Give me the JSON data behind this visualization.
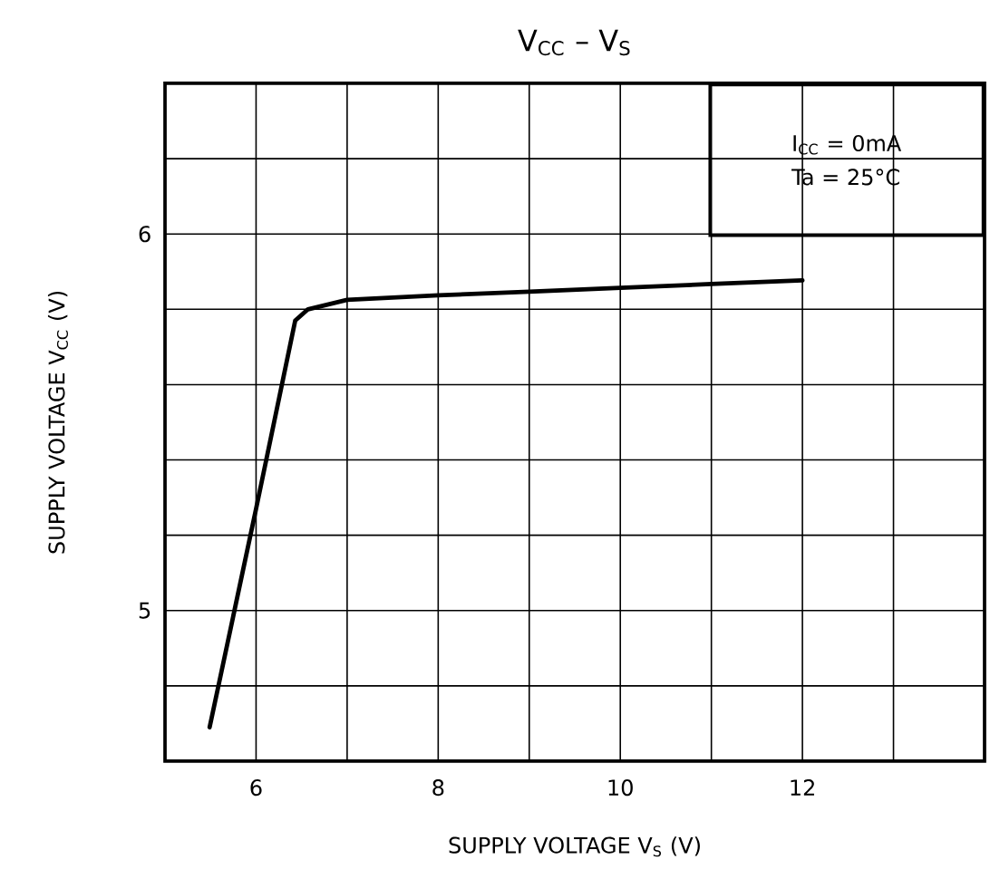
{
  "chart_data": {
    "type": "line",
    "title": "V$_{CC}$ – V$_{S}$",
    "xlabel": "SUPPLY VOLTAGE   V$_{S}$    (V)",
    "ylabel": "SUPPLY VOLTAGE   V$_{CC}$    (V)",
    "annotations": [
      "I$_{CC}$ = 0mA",
      "Ta = 25°C"
    ],
    "x": [
      5.49,
      6.0,
      6.43,
      6.57,
      7.0,
      8.0,
      9.0,
      10.0,
      11.0,
      12.0
    ],
    "series": [
      {
        "color": "#000000",
        "values": [
          4.69,
          5.27,
          5.77,
          5.8,
          5.825,
          5.837,
          5.847,
          5.857,
          5.867,
          5.877
        ]
      }
    ],
    "xlim": [
      5,
      14
    ],
    "ylim": [
      4.6,
      6.4
    ],
    "xticks": [
      {
        "value": 5,
        "label": null
      },
      6,
      {
        "value": 7,
        "label": null
      },
      8,
      {
        "value": 9,
        "label": null
      },
      10,
      {
        "value": 11,
        "label": null
      },
      12,
      {
        "value": 13,
        "label": null
      },
      {
        "value": 14,
        "label": null
      }
    ],
    "yticks": [
      {
        "value": 4.6,
        "label": null
      },
      {
        "value": 4.8,
        "label": null
      },
      5,
      {
        "value": 5.2,
        "label": null
      },
      {
        "value": 5.4,
        "label": null
      },
      {
        "value": 5.6,
        "label": null
      },
      {
        "value": 5.8,
        "label": null
      },
      6,
      {
        "value": 6.2,
        "label": null
      },
      {
        "value": 6.4,
        "label": null
      }
    ],
    "grid": true,
    "marker": "none",
    "line_style": "solid"
  }
}
